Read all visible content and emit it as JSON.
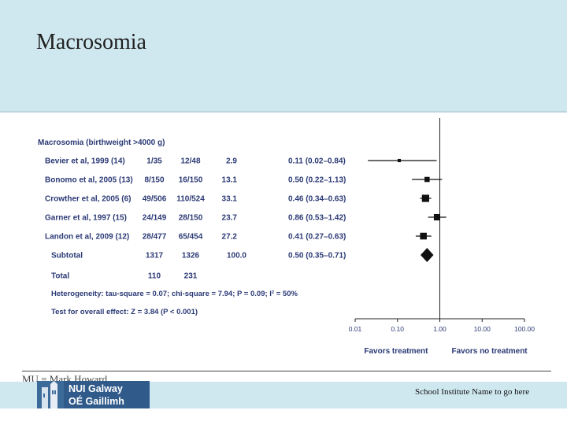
{
  "slide": {
    "title": "Macrosomia",
    "footer_cut_text": "MU  =  Mark  Howard",
    "school": "School Institute Name to go here",
    "logo": {
      "line1": "NUI Galway",
      "line2": "OÉ Gaillimh"
    }
  },
  "chart_data": {
    "type": "forest",
    "section_label": "Macrosomia (birthweight >4000 g)",
    "studies": [
      {
        "name": "Bevier et al, 1999 (14)",
        "treatment": "1/35",
        "control": "12/48",
        "weight": "2.9",
        "ci_text": "0.11 (0.02–0.84)",
        "estimate": 0.11,
        "lower": 0.02,
        "upper": 0.84
      },
      {
        "name": "Bonomo et al, 2005 (13)",
        "treatment": "8/150",
        "control": "16/150",
        "weight": "13.1",
        "ci_text": "0.50 (0.22–1.13)",
        "estimate": 0.5,
        "lower": 0.22,
        "upper": 1.13
      },
      {
        "name": "Crowther et al, 2005 (6)",
        "treatment": "49/506",
        "control": "110/524",
        "weight": "33.1",
        "ci_text": "0.46 (0.34–0.63)",
        "estimate": 0.46,
        "lower": 0.34,
        "upper": 0.63
      },
      {
        "name": "Garner et al, 1997 (15)",
        "treatment": "24/149",
        "control": "28/150",
        "weight": "23.7",
        "ci_text": "0.86 (0.53–1.42)",
        "estimate": 0.86,
        "lower": 0.53,
        "upper": 1.42
      },
      {
        "name": "Landon et al, 2009 (12)",
        "treatment": "28/477",
        "control": "65/454",
        "weight": "27.2",
        "ci_text": "0.41 (0.27–0.63)",
        "estimate": 0.41,
        "lower": 0.27,
        "upper": 0.63
      }
    ],
    "subtotal": {
      "name": "Subtotal",
      "treatment": "1317",
      "control": "1326",
      "weight": "100.0",
      "ci_text": "0.50 (0.35–0.71)",
      "estimate": 0.5,
      "lower": 0.35,
      "upper": 0.71
    },
    "total": {
      "name": "Total",
      "treatment": "110",
      "control": "231"
    },
    "heterogeneity": "Heterogeneity: tau-square = 0.07; chi-square = 7.94; P = 0.09; I² = 50%",
    "overall_effect": "Test for overall effect: Z = 3.84 (P < 0.001)",
    "x_scale": "log",
    "xlim": [
      0.01,
      100
    ],
    "x_ticks": [
      "0.01",
      "0.10",
      "1.00",
      "10.00",
      "100.00"
    ],
    "x_tick_values": [
      0.01,
      0.1,
      1,
      10,
      100
    ],
    "favors_left": "Favors treatment",
    "favors_right": "Favors no treatment"
  }
}
